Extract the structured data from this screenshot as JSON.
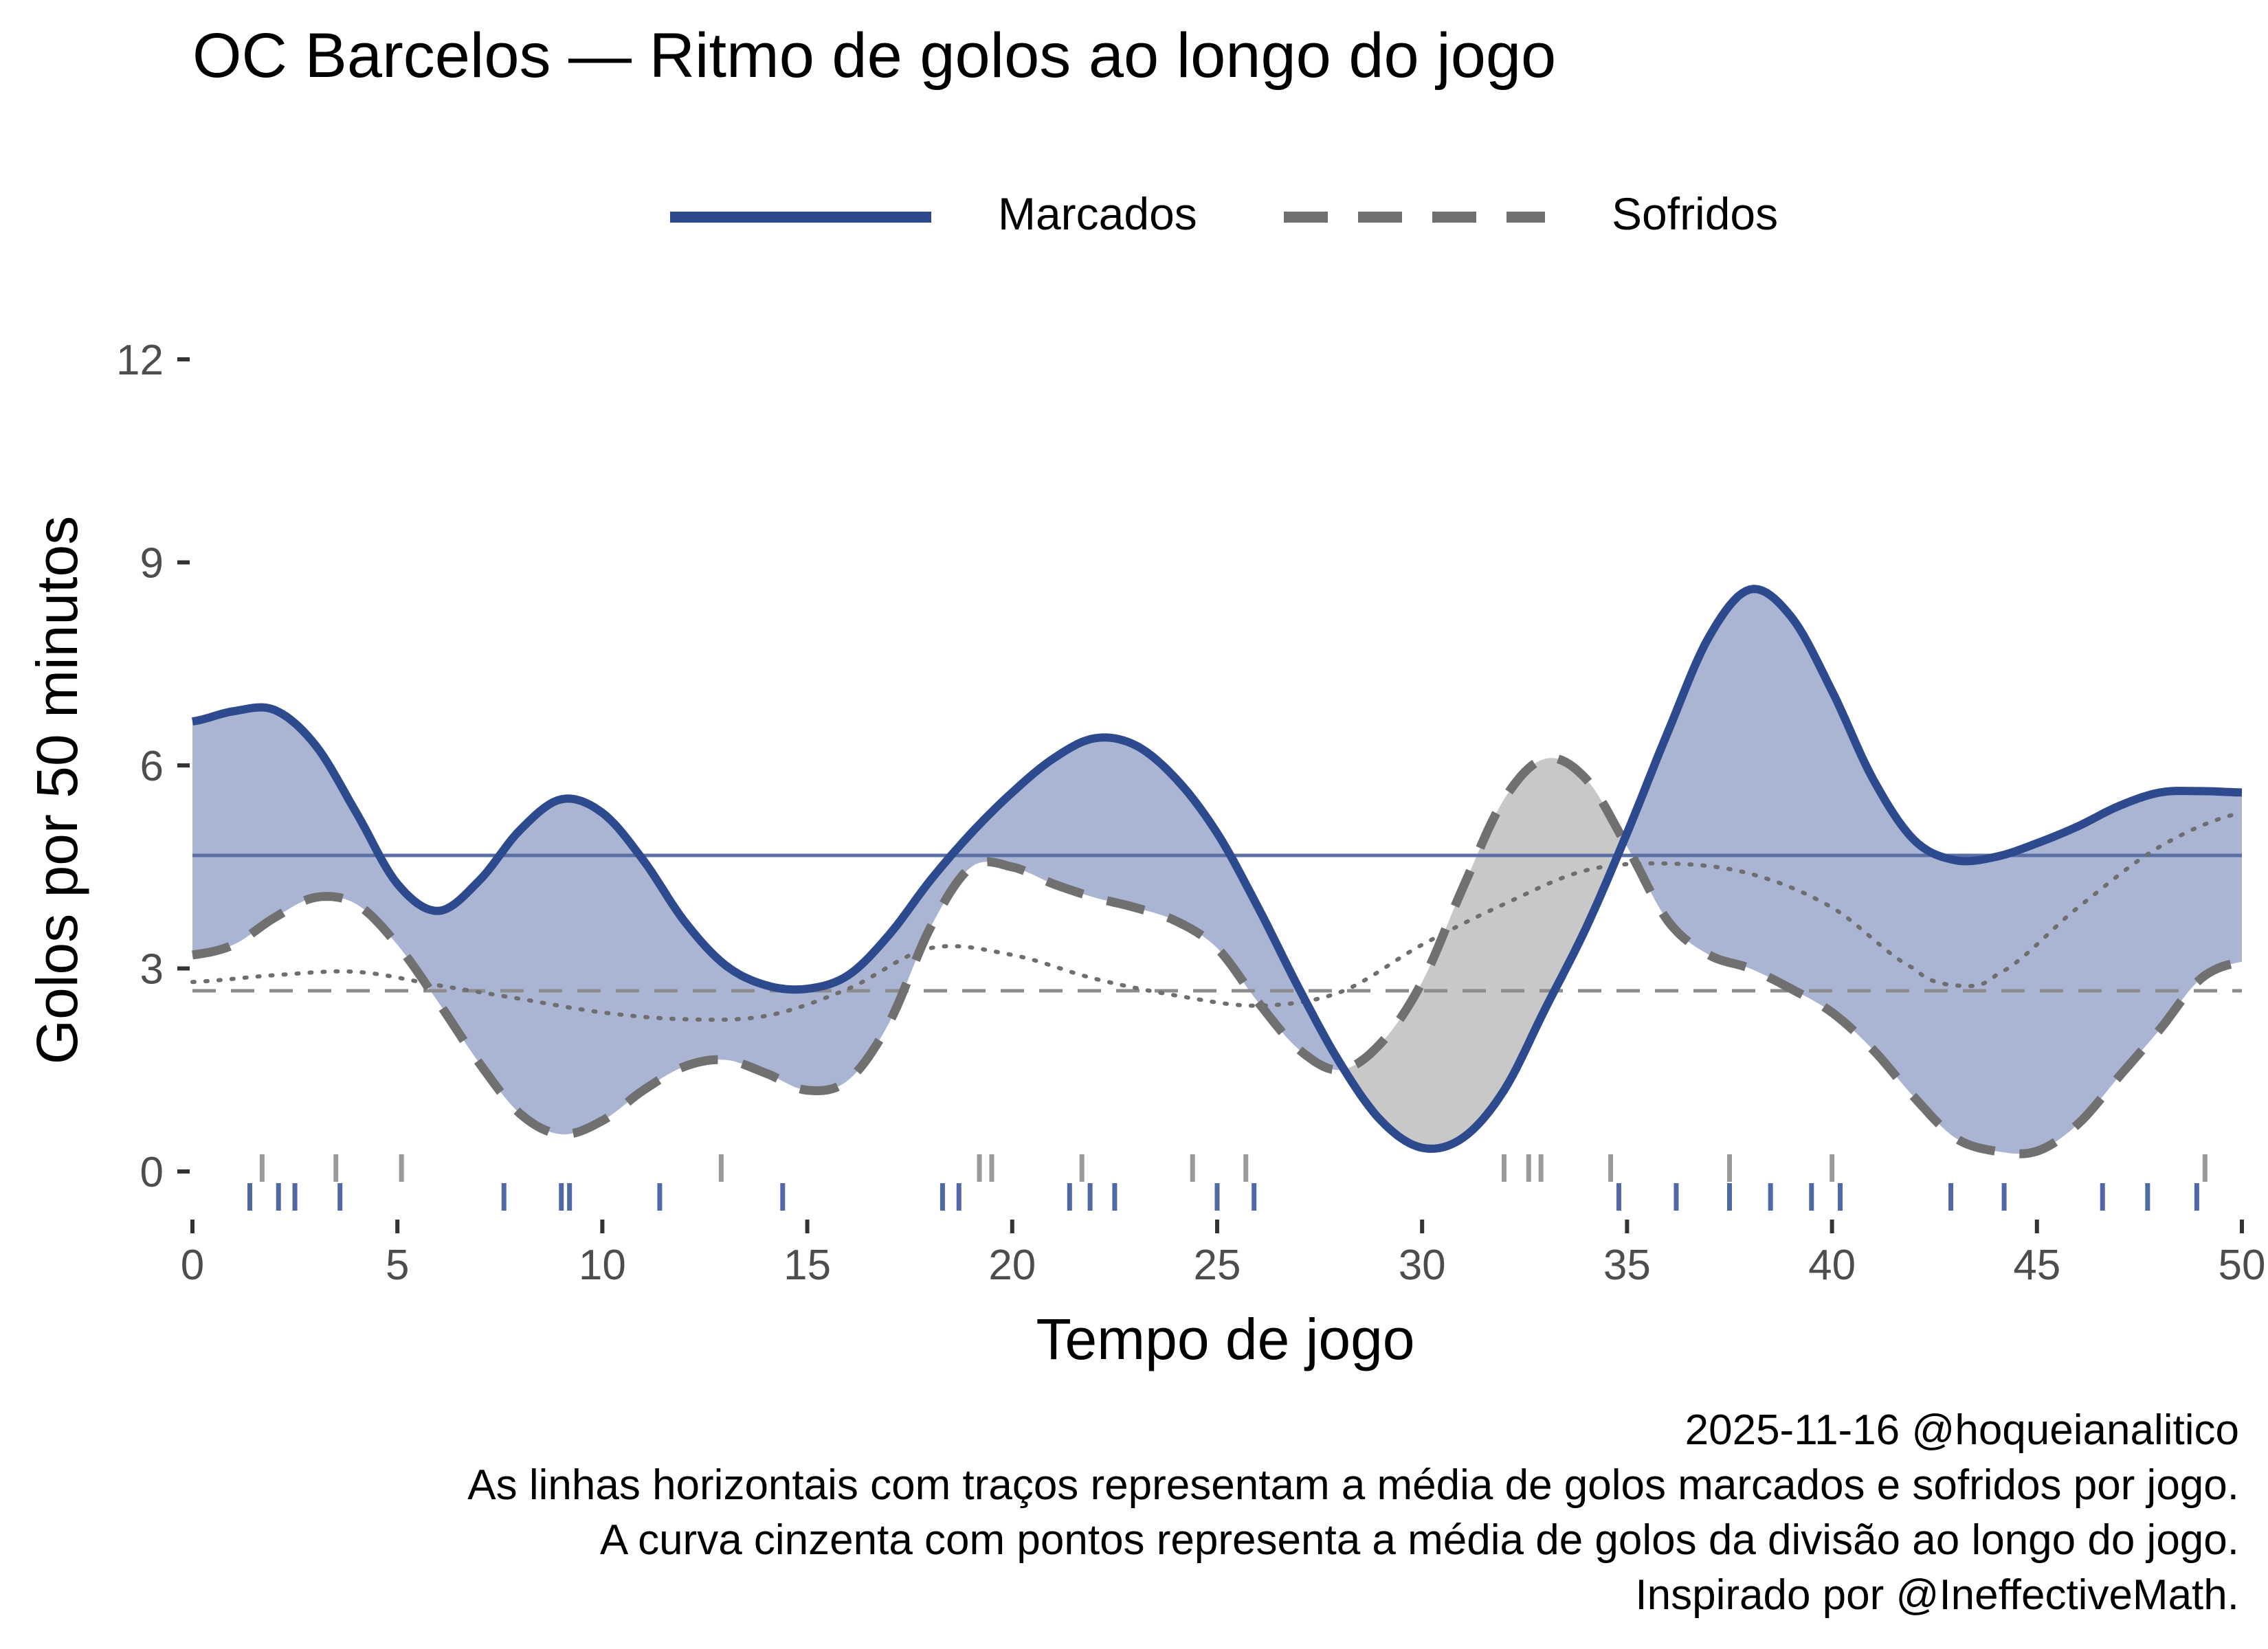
{
  "chart_data": {
    "type": "area",
    "title": "OC Barcelos — Ritmo de golos ao longo do jogo",
    "xlabel": "Tempo de jogo",
    "ylabel": "Golos por 50 minutos",
    "xlim": [
      0,
      50
    ],
    "ylim": [
      -0.6,
      13
    ],
    "x_ticks": [
      "0",
      "5",
      "10",
      "15",
      "20",
      "25",
      "30",
      "35",
      "40",
      "45",
      "50"
    ],
    "y_ticks": [
      "0",
      "3",
      "6",
      "9",
      "12"
    ],
    "legend": {
      "position": "top",
      "entries": [
        "Marcados",
        "Sofridos"
      ]
    },
    "colors": {
      "scored": "#2e4a8e",
      "scored_fill": "#aab4d3",
      "conceded": "#707070",
      "conceded_fill": "#c8c8c8",
      "division": "#6e6e6e",
      "avg_conceded": "#8c8c8c"
    },
    "series": [
      {
        "name": "Marcados",
        "x": [
          0,
          1,
          2,
          3,
          4,
          5,
          6,
          7,
          8,
          9,
          10,
          11,
          12,
          13,
          14,
          15,
          16,
          17,
          18,
          19,
          20,
          21,
          22,
          23,
          24,
          25,
          26,
          27,
          28,
          29,
          30,
          31,
          32,
          33,
          34,
          35,
          36,
          37,
          38,
          39,
          40,
          41,
          42,
          43,
          44,
          45,
          46,
          47,
          48,
          49,
          50
        ],
        "values": [
          6.65,
          6.8,
          6.82,
          6.3,
          5.3,
          4.25,
          3.85,
          4.3,
          5.05,
          5.5,
          5.3,
          4.6,
          3.7,
          3.05,
          2.75,
          2.7,
          2.9,
          3.5,
          4.3,
          5.0,
          5.6,
          6.1,
          6.4,
          6.3,
          5.8,
          5.0,
          3.9,
          2.7,
          1.6,
          0.75,
          0.35,
          0.5,
          1.2,
          2.4,
          3.6,
          5.0,
          6.5,
          7.9,
          8.6,
          8.2,
          7.1,
          5.8,
          4.9,
          4.6,
          4.65,
          4.85,
          5.1,
          5.4,
          5.6,
          5.62,
          5.6
        ]
      },
      {
        "name": "Sofridos",
        "x": [
          0,
          1,
          2,
          3,
          4,
          5,
          6,
          7,
          8,
          9,
          10,
          11,
          12,
          13,
          14,
          15,
          16,
          17,
          18,
          19,
          20,
          21,
          22,
          23,
          24,
          25,
          26,
          27,
          28,
          29,
          30,
          31,
          32,
          33,
          34,
          35,
          36,
          37,
          38,
          39,
          40,
          41,
          42,
          43,
          44,
          45,
          46,
          47,
          48,
          49,
          50
        ],
        "values": [
          3.2,
          3.35,
          3.75,
          4.05,
          3.95,
          3.35,
          2.5,
          1.6,
          0.85,
          0.55,
          0.75,
          1.2,
          1.55,
          1.65,
          1.45,
          1.2,
          1.35,
          2.2,
          3.6,
          4.5,
          4.5,
          4.25,
          4.05,
          3.9,
          3.7,
          3.3,
          2.5,
          1.8,
          1.5,
          1.9,
          2.8,
          4.2,
          5.5,
          6.1,
          5.8,
          4.8,
          3.7,
          3.2,
          3.0,
          2.7,
          2.35,
          1.8,
          1.1,
          0.5,
          0.3,
          0.3,
          0.7,
          1.4,
          2.1,
          2.85,
          3.1
        ]
      },
      {
        "name": "Média da divisão",
        "x": [
          0,
          2,
          4,
          6,
          8,
          10,
          12,
          14,
          16,
          18,
          20,
          22,
          24,
          26,
          28,
          30,
          32,
          34,
          36,
          38,
          40,
          42,
          43,
          44,
          46,
          48,
          50
        ],
        "values": [
          2.8,
          2.9,
          2.95,
          2.75,
          2.55,
          2.35,
          2.25,
          2.3,
          2.7,
          3.3,
          3.2,
          2.85,
          2.6,
          2.45,
          2.65,
          3.35,
          3.95,
          4.45,
          4.55,
          4.4,
          3.9,
          3.0,
          2.75,
          2.9,
          3.9,
          4.8,
          5.3
        ]
      }
    ],
    "reference_lines": [
      {
        "name": "Média de golos marcados",
        "y": 4.67
      },
      {
        "name": "Média de golos sofridos",
        "y": 2.67
      }
    ],
    "rug": {
      "sofridos": [
        1.7,
        3.5,
        5.1,
        12.9,
        19.2,
        19.5,
        21.7,
        24.4,
        25.7,
        32.0,
        32.6,
        32.9,
        34.6,
        37.5,
        40.0,
        49.1
      ],
      "marcados": [
        1.4,
        2.1,
        2.5,
        3.6,
        7.6,
        9.0,
        9.2,
        11.4,
        14.4,
        18.3,
        18.7,
        21.4,
        21.9,
        22.5,
        25.0,
        25.9,
        34.8,
        36.2,
        37.5,
        38.5,
        39.5,
        40.2,
        42.9,
        44.2,
        46.6,
        47.7,
        48.9
      ]
    }
  },
  "caption": {
    "line1": "2025-11-16 @hoqueianalitico",
    "line2": "As linhas horizontais com traços representam a média de golos marcados e sofridos por jogo.",
    "line3": "A curva cinzenta com pontos representa a média de golos da divisão ao longo do jogo.",
    "line4": "Inspirado por @IneffectiveMath."
  }
}
